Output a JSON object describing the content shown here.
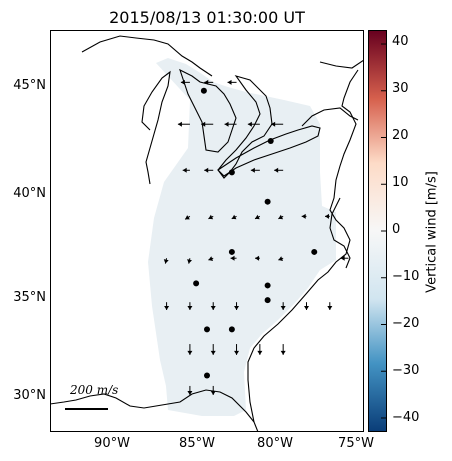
{
  "title": "2015/08/13 01:30:00 UT",
  "lat_ticks": [
    "45°N",
    "40°N",
    "35°N",
    "30°N"
  ],
  "lon_ticks": [
    "90°W",
    "85°W",
    "80°W",
    "75°W"
  ],
  "colorbar": {
    "label": "Vertical wind [m/s]",
    "ticks": [
      "40",
      "30",
      "20",
      "10",
      "0",
      "−10",
      "−20",
      "−30",
      "−40"
    ],
    "range": [
      -43,
      43
    ],
    "colors": [
      "#0a3d78",
      "#4393c3",
      "#d1e5f0",
      "#f7f7f7",
      "#fddbc7",
      "#d6604d",
      "#67001f"
    ]
  },
  "scale": {
    "label": "200 m/s",
    "value": 200,
    "unit": "m/s"
  },
  "map": {
    "lon_range": [
      -94.5,
      -74.3
    ],
    "lat_range": [
      28.3,
      47.5
    ],
    "shaded_field_color": "#e8eff3",
    "vector_rows": [
      {
        "lat": 45.0,
        "vectors": [
          [
            -85.5,
            -1.5,
            0
          ],
          [
            -84.0,
            -1.5,
            0
          ],
          [
            -82.5,
            -1.5,
            0
          ]
        ]
      },
      {
        "lat": 43.0,
        "vectors": [
          [
            -85.5,
            -2,
            0
          ],
          [
            -84.0,
            -2,
            0
          ],
          [
            -82.5,
            -2,
            0
          ],
          [
            -81.0,
            -2,
            0
          ],
          [
            -79.5,
            -2,
            0
          ]
        ]
      },
      {
        "lat": 40.8,
        "vectors": [
          [
            -85.5,
            -1.2,
            0
          ],
          [
            -84.0,
            -1.5,
            0
          ],
          [
            -81.0,
            -1.5,
            0
          ],
          [
            -79.5,
            -1.5,
            0
          ]
        ]
      },
      {
        "lat": 38.6,
        "vectors": [
          [
            -85.5,
            -0.8,
            -0.5
          ],
          [
            -84.0,
            -0.8,
            -0.4
          ],
          [
            -82.5,
            -0.8,
            -0.4
          ],
          [
            -81.0,
            -0.8,
            -0.4
          ],
          [
            -79.5,
            -0.8,
            -0.4
          ],
          [
            -78.0,
            -0.8,
            0
          ],
          [
            -76.5,
            -0.8,
            0
          ]
        ]
      },
      {
        "lat": 36.6,
        "vectors": [
          [
            -87.0,
            -0.2,
            -0.9
          ],
          [
            -85.5,
            -0.2,
            -0.9
          ],
          [
            -84.0,
            -0.8,
            -0.3
          ],
          [
            -82.5,
            -1.0,
            0
          ],
          [
            -81.0,
            -0.8,
            0
          ],
          [
            -79.5,
            -0.8,
            -0.3
          ],
          [
            -75.3,
            -1.3,
            0
          ]
        ]
      },
      {
        "lat": 34.5,
        "vectors": [
          [
            -87.0,
            0,
            -1.3
          ],
          [
            -85.5,
            0,
            -1.3
          ],
          [
            -84.0,
            0,
            -1.3
          ],
          [
            -82.5,
            0,
            -1.3
          ],
          [
            -79.5,
            0,
            -1.3
          ],
          [
            -78.0,
            0,
            -1.3
          ],
          [
            -76.5,
            0,
            -1.3
          ]
        ]
      },
      {
        "lat": 32.5,
        "vectors": [
          [
            -85.5,
            0,
            -1.8
          ],
          [
            -84.0,
            0,
            -1.8
          ],
          [
            -82.5,
            0,
            -1.8
          ],
          [
            -81.0,
            0,
            -1.8
          ],
          [
            -79.5,
            0,
            -1.8
          ]
        ]
      },
      {
        "lat": 30.5,
        "vectors": [
          [
            -85.5,
            0,
            -1.5
          ],
          [
            -84.0,
            0,
            -1.5
          ]
        ]
      }
    ],
    "stations": [
      [
        -84.6,
        44.6
      ],
      [
        -80.3,
        42.2
      ],
      [
        -82.8,
        40.7
      ],
      [
        -80.5,
        39.3
      ],
      [
        -82.8,
        36.9
      ],
      [
        -77.5,
        36.9
      ],
      [
        -85.1,
        35.4
      ],
      [
        -80.5,
        35.3
      ],
      [
        -80.5,
        34.6
      ],
      [
        -84.4,
        33.2
      ],
      [
        -82.8,
        33.2
      ],
      [
        -84.4,
        31.0
      ]
    ]
  }
}
